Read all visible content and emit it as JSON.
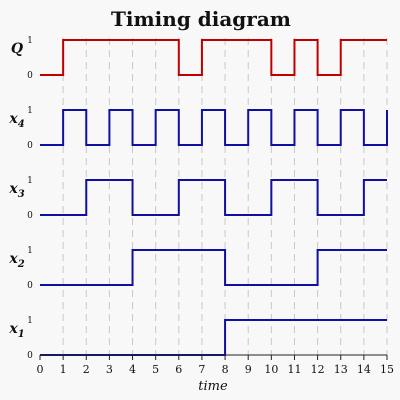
{
  "chart_data": {
    "type": "line",
    "title": "Timing diagram",
    "xlabel": "time",
    "xlim": [
      0,
      15
    ],
    "x_ticks": [
      "0",
      "1",
      "2",
      "3",
      "4",
      "5",
      "6",
      "7",
      "8",
      "9",
      "10",
      "11",
      "12",
      "13",
      "14",
      "15"
    ],
    "level_labels": [
      "0",
      "1"
    ],
    "grid": "vertical dashed",
    "series": [
      {
        "name": "Q",
        "label": "Q",
        "subscript": "",
        "color": "#c00000",
        "transitions": [
          [
            0,
            0
          ],
          [
            1,
            1
          ],
          [
            6,
            0
          ],
          [
            7,
            1
          ],
          [
            10,
            0
          ],
          [
            11,
            1
          ],
          [
            12,
            0
          ],
          [
            13,
            1
          ]
        ]
      },
      {
        "name": "x4",
        "label": "x",
        "subscript": "4",
        "color": "#1010a0",
        "transitions": [
          [
            0,
            0
          ],
          [
            1,
            1
          ],
          [
            2,
            0
          ],
          [
            3,
            1
          ],
          [
            4,
            0
          ],
          [
            5,
            1
          ],
          [
            6,
            0
          ],
          [
            7,
            1
          ],
          [
            8,
            0
          ],
          [
            9,
            1
          ],
          [
            10,
            0
          ],
          [
            11,
            1
          ],
          [
            12,
            0
          ],
          [
            13,
            1
          ],
          [
            14,
            0
          ],
          [
            15,
            1
          ]
        ]
      },
      {
        "name": "x3",
        "label": "x",
        "subscript": "3",
        "color": "#1010a0",
        "transitions": [
          [
            0,
            0
          ],
          [
            2,
            1
          ],
          [
            4,
            0
          ],
          [
            6,
            1
          ],
          [
            8,
            0
          ],
          [
            10,
            1
          ],
          [
            12,
            0
          ],
          [
            14,
            1
          ]
        ]
      },
      {
        "name": "x2",
        "label": "x",
        "subscript": "2",
        "color": "#1010a0",
        "transitions": [
          [
            0,
            0
          ],
          [
            4,
            1
          ],
          [
            8,
            0
          ],
          [
            12,
            1
          ]
        ]
      },
      {
        "name": "x1",
        "label": "x",
        "subscript": "1",
        "color": "#1010a0",
        "transitions": [
          [
            0,
            0
          ],
          [
            8,
            1
          ]
        ]
      }
    ]
  }
}
